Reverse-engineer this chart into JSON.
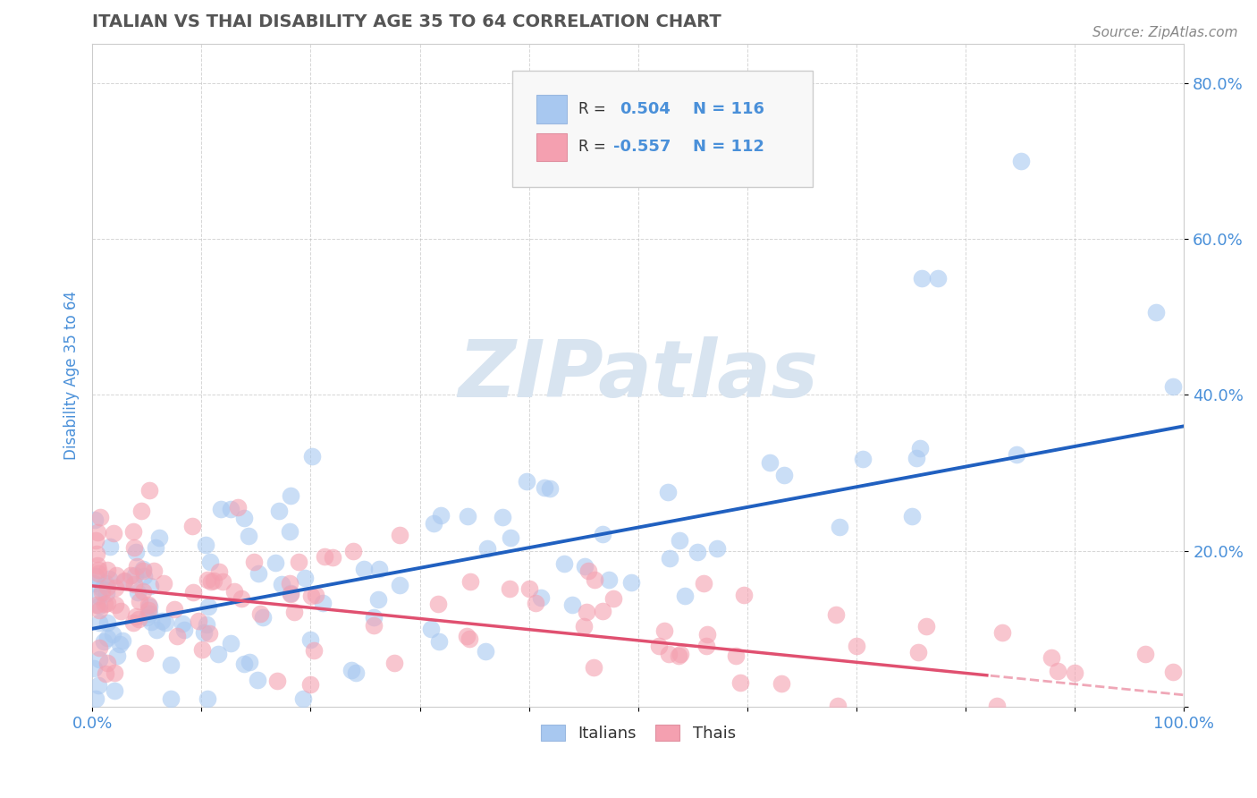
{
  "title": "ITALIAN VS THAI DISABILITY AGE 35 TO 64 CORRELATION CHART",
  "source": "Source: ZipAtlas.com",
  "ylabel": "Disability Age 35 to 64",
  "xlim": [
    0.0,
    1.0
  ],
  "ylim": [
    0.0,
    0.85
  ],
  "xtick_positions": [
    0.0,
    0.1,
    0.2,
    0.3,
    0.4,
    0.5,
    0.6,
    0.7,
    0.8,
    0.9,
    1.0
  ],
  "xticklabels": [
    "0.0%",
    "",
    "",
    "",
    "",
    "",
    "",
    "",
    "",
    "",
    "100.0%"
  ],
  "ytick_positions": [
    0.0,
    0.2,
    0.4,
    0.6,
    0.8
  ],
  "yticklabels": [
    "",
    "20.0%",
    "40.0%",
    "60.0%",
    "80.0%"
  ],
  "italian_R": 0.504,
  "italian_N": 116,
  "thai_R": -0.557,
  "thai_N": 112,
  "italian_color": "#a8c8f0",
  "thai_color": "#f4a0b0",
  "italian_line_color": "#2060c0",
  "thai_line_color": "#e05070",
  "watermark_color": "#d8e4f0",
  "legend_entries": [
    "Italians",
    "Thais"
  ],
  "background_color": "#ffffff",
  "grid_color": "#bbbbbb",
  "title_color": "#555555",
  "tick_label_color": "#4a90d9",
  "stat_label_color": "#333333",
  "source_color": "#888888",
  "it_line_intercept": 0.1,
  "it_line_slope": 0.26,
  "th_line_intercept": 0.155,
  "th_line_slope": -0.14
}
